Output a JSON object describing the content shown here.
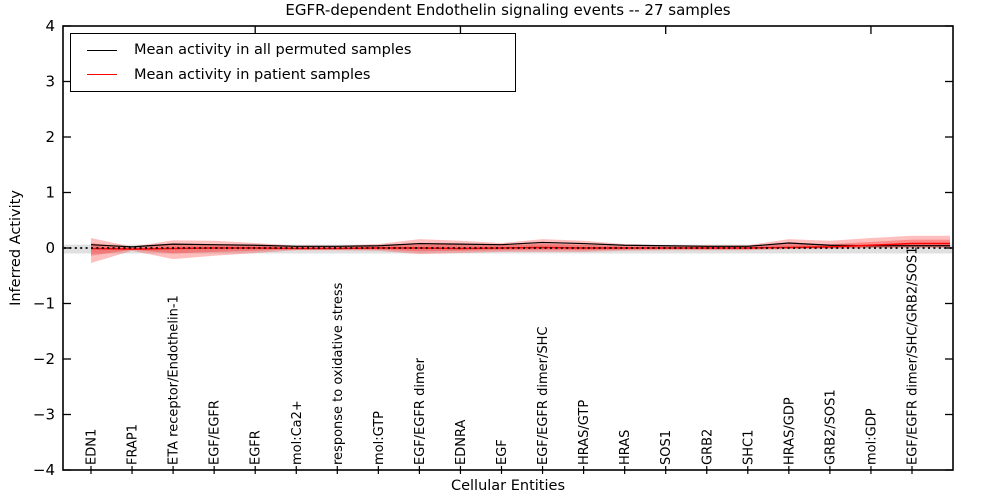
{
  "title": "EGFR-dependent Endothelin signaling events -- 27 samples",
  "axes": {
    "ylabel": "Inferred Activity",
    "xlabel": "Cellular Entities",
    "ylim": [
      -4,
      4
    ],
    "yticks": [
      {
        "value": 4,
        "label": "4"
      },
      {
        "value": 3,
        "label": "3"
      },
      {
        "value": 2,
        "label": "2"
      },
      {
        "value": 1,
        "label": "1"
      },
      {
        "value": 0,
        "label": "0"
      },
      {
        "value": -1,
        "label": "−1"
      },
      {
        "value": -2,
        "label": "−2"
      },
      {
        "value": -3,
        "label": "−3"
      },
      {
        "value": -4,
        "label": "−4"
      }
    ]
  },
  "legend": {
    "entries": [
      {
        "label": "Mean activity in all permuted samples",
        "color": "#000000"
      },
      {
        "label": "Mean activity in patient samples",
        "color": "#ff0000"
      }
    ],
    "position": "upper left"
  },
  "chart_data": {
    "type": "line",
    "title": "EGFR-dependent Endothelin signaling events -- 27 samples",
    "xlabel": "Cellular Entities",
    "ylabel": "Inferred Activity",
    "ylim": [
      -4,
      4
    ],
    "grid": false,
    "legend_position": "upper left",
    "x_major_tick_indices": [
      4,
      9,
      14,
      19
    ],
    "categories": [
      "EDN1",
      "FRAP1",
      "ETA receptor/Endothelin-1",
      "EGF/EGFR",
      "EGFR",
      "mol:Ca2+",
      "response to oxidative stress",
      "mol:GTP",
      "EGF/EGFR dimer",
      "EDNRA",
      "EGF",
      "EGF/EGFR dimer/SHC",
      "HRAS/GTP",
      "HRAS",
      "SOS1",
      "GRB2",
      "SHC1",
      "HRAS/GDP",
      "GRB2/SOS1",
      "mol:GDP",
      "EGF/EGFR dimer/SHC/GRB2/SOS1"
    ],
    "series": [
      {
        "name": "Mean activity in all permuted samples",
        "color": "#000000",
        "style": "solid",
        "width": 1.2,
        "values": [
          0.06,
          0.02,
          0.07,
          0.06,
          0.05,
          0.03,
          0.03,
          0.04,
          0.08,
          0.07,
          0.06,
          0.1,
          0.08,
          0.05,
          0.04,
          0.03,
          0.03,
          0.09,
          0.05,
          0.04,
          0.04
        ]
      },
      {
        "name": "Mean activity in patient samples",
        "color": "#ff0000",
        "style": "solid",
        "width": 1.5,
        "values": [
          -0.01,
          -0.02,
          -0.01,
          0.0,
          0.0,
          -0.01,
          -0.01,
          0.0,
          0.0,
          -0.01,
          0.0,
          0.01,
          0.0,
          0.0,
          0.0,
          0.0,
          0.0,
          0.01,
          0.02,
          0.05,
          0.08
        ]
      },
      {
        "name": "zero-reference",
        "color": "#000000",
        "style": "dotted",
        "width": 1.8,
        "values": [
          0,
          0,
          0,
          0,
          0,
          0,
          0,
          0,
          0,
          0,
          0,
          0,
          0,
          0,
          0,
          0,
          0,
          0,
          0,
          0,
          0
        ]
      }
    ],
    "bands": [
      {
        "name": "permuted-range-band",
        "color": "rgba(0,0,0,0.12)",
        "upper": [
          0.06,
          0.06,
          0.06,
          0.06,
          0.06,
          0.06,
          0.06,
          0.06,
          0.06,
          0.06,
          0.06,
          0.06,
          0.06,
          0.06,
          0.06,
          0.06,
          0.06,
          0.06,
          0.06,
          0.06,
          0.06
        ],
        "lower": [
          -0.1,
          -0.1,
          -0.1,
          -0.1,
          -0.1,
          -0.1,
          -0.1,
          -0.1,
          -0.1,
          -0.1,
          -0.1,
          -0.1,
          -0.1,
          -0.1,
          -0.1,
          -0.1,
          -0.1,
          -0.1,
          -0.1,
          -0.1,
          -0.1
        ],
        "full_width": true
      },
      {
        "name": "patient-band-outer",
        "color": "rgba(255,0,0,0.25)",
        "upper": [
          0.18,
          0.02,
          0.14,
          0.13,
          0.09,
          0.04,
          0.04,
          0.07,
          0.16,
          0.13,
          0.09,
          0.16,
          0.13,
          0.07,
          0.05,
          0.05,
          0.05,
          0.16,
          0.13,
          0.18,
          0.22
        ],
        "lower": [
          -0.27,
          -0.05,
          -0.2,
          -0.14,
          -0.09,
          -0.04,
          -0.04,
          -0.05,
          -0.11,
          -0.09,
          -0.07,
          -0.07,
          -0.07,
          -0.05,
          -0.04,
          -0.04,
          -0.04,
          -0.02,
          -0.02,
          0.0,
          0.0
        ],
        "full_width": false
      },
      {
        "name": "patient-band-inner",
        "color": "rgba(255,0,0,0.27)",
        "upper": [
          0.09,
          0.0,
          0.07,
          0.06,
          0.04,
          0.02,
          0.02,
          0.03,
          0.08,
          0.06,
          0.05,
          0.08,
          0.06,
          0.03,
          0.02,
          0.02,
          0.02,
          0.08,
          0.07,
          0.11,
          0.15
        ],
        "lower": [
          -0.14,
          -0.03,
          -0.1,
          -0.07,
          -0.05,
          -0.02,
          -0.02,
          -0.03,
          -0.06,
          -0.05,
          -0.04,
          -0.03,
          -0.04,
          -0.03,
          -0.02,
          -0.02,
          -0.02,
          -0.01,
          0.0,
          0.01,
          0.02
        ],
        "full_width": false
      }
    ]
  }
}
